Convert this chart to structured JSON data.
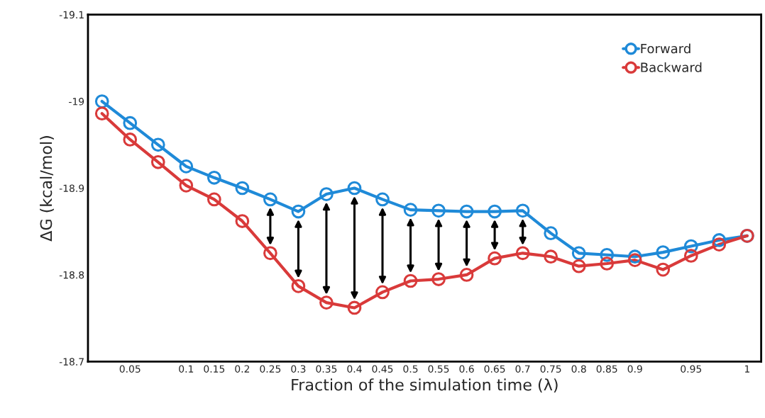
{
  "chart_data": {
    "type": "line",
    "xlabel": "Fraction of the simulation time (λ)",
    "ylabel": "ΔG (kcal/mol)",
    "categories": [
      null,
      "0.05",
      null,
      "0.1",
      "0.15",
      "0.2",
      "0.25",
      "0.3",
      "0.35",
      "0.4",
      "0.45",
      "0.5",
      "0.55",
      "0.6",
      "0.65",
      "0.7",
      "0.75",
      "0.8",
      "0.85",
      "0.9",
      null,
      "0.95",
      null,
      "1"
    ],
    "series": [
      {
        "name": "Forward",
        "color": "#1f8ad8",
        "values": [
          -19.0,
          -18.975,
          -18.95,
          -18.925,
          -18.912,
          -18.9,
          -18.887,
          -18.873,
          -18.893,
          -18.9,
          -18.887,
          -18.875,
          -18.874,
          -18.873,
          -18.873,
          -18.874,
          -18.848,
          -18.825,
          -18.823,
          -18.821,
          -18.826,
          -18.833,
          -18.84,
          -18.845
        ]
      },
      {
        "name": "Backward",
        "color": "#d93a3a",
        "values": [
          -18.986,
          -18.956,
          -18.93,
          -18.903,
          -18.887,
          -18.862,
          -18.825,
          -18.787,
          -18.768,
          -18.762,
          -18.78,
          -18.793,
          -18.795,
          -18.8,
          -18.819,
          -18.825,
          -18.821,
          -18.81,
          -18.813,
          -18.817,
          -18.806,
          -18.822,
          -18.835,
          -18.845
        ]
      }
    ],
    "ylim": [
      -18.7,
      -19.1
    ],
    "yticks": [
      -19.1,
      {
        "value": -19.0,
        "label": "-19"
      },
      -18.9,
      -18.8,
      -18.7
    ],
    "marker": "circle",
    "line_style": "solid",
    "legend": "top right",
    "grid": false
  }
}
